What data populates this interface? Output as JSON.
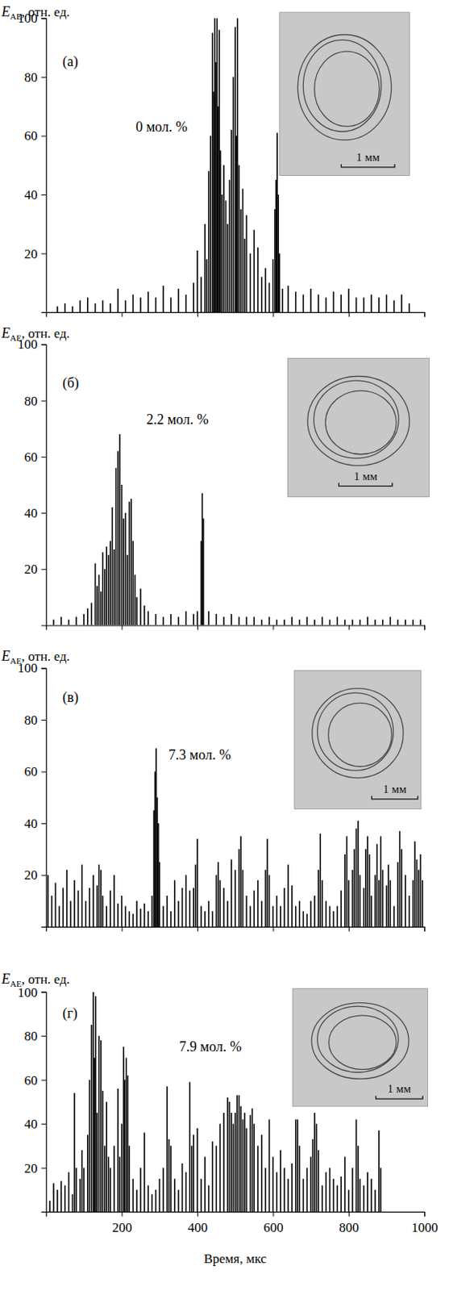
{
  "chart_data": [
    {
      "type": "bar",
      "panel_label": "(а)",
      "annotation": "0 мол. %",
      "scale_bar": "1 мм",
      "ylabel": {
        "symbol": "E",
        "subscript": "AE",
        "unit": ", отн. ед."
      },
      "color": "#000000",
      "grid": false,
      "tick_labels": "y",
      "xlim": [
        0,
        1000
      ],
      "ylim": [
        0,
        100
      ],
      "xticks": [
        200,
        400,
        600,
        800,
        1000
      ],
      "yticks": [
        20,
        40,
        60,
        80,
        100
      ],
      "x": [
        30,
        50,
        70,
        90,
        110,
        130,
        150,
        170,
        190,
        210,
        230,
        250,
        270,
        290,
        310,
        330,
        350,
        370,
        390,
        400,
        410,
        420,
        425,
        430,
        435,
        440,
        443,
        446,
        449,
        452,
        455,
        458,
        461,
        465,
        470,
        475,
        480,
        485,
        490,
        495,
        500,
        503,
        506,
        510,
        515,
        520,
        525,
        530,
        540,
        550,
        560,
        570,
        580,
        590,
        600,
        605,
        608,
        611,
        614,
        617,
        625,
        640,
        660,
        680,
        700,
        720,
        740,
        760,
        780,
        800,
        820,
        840,
        860,
        880,
        900,
        920,
        940,
        960
      ],
      "values": [
        2,
        3,
        2,
        4,
        5,
        3,
        4,
        3,
        8,
        4,
        6,
        5,
        7,
        5,
        9,
        5,
        8,
        6,
        10,
        21,
        12,
        30,
        18,
        48,
        60,
        95,
        75,
        100,
        85,
        100,
        70,
        96,
        55,
        40,
        50,
        38,
        30,
        45,
        62,
        80,
        97,
        60,
        100,
        50,
        35,
        42,
        25,
        33,
        20,
        28,
        22,
        12,
        15,
        10,
        18,
        35,
        45,
        61,
        40,
        20,
        8,
        9,
        7,
        6,
        8,
        6,
        5,
        7,
        6,
        8,
        5,
        5,
        6,
        5,
        6,
        4,
        6,
        3
      ]
    },
    {
      "type": "bar",
      "panel_label": "(б)",
      "annotation": "2.2 мол. %",
      "scale_bar": "1 мм",
      "ylabel": {
        "symbol": "E",
        "subscript": "AE",
        "unit": ", отн. ед."
      },
      "color": "#000000",
      "grid": false,
      "tick_labels": "y",
      "xlim": [
        0,
        1000
      ],
      "ylim": [
        0,
        100
      ],
      "xticks": [
        200,
        400,
        600,
        800,
        1000
      ],
      "yticks": [
        20,
        40,
        60,
        80,
        100
      ],
      "x": [
        20,
        40,
        60,
        80,
        100,
        110,
        120,
        130,
        135,
        140,
        145,
        150,
        155,
        160,
        165,
        170,
        175,
        180,
        185,
        190,
        195,
        200,
        205,
        210,
        215,
        220,
        225,
        230,
        235,
        240,
        250,
        260,
        270,
        290,
        310,
        330,
        350,
        370,
        390,
        400,
        410,
        413,
        416,
        430,
        450,
        470,
        490,
        510,
        530,
        550,
        570,
        590,
        610,
        630,
        650,
        670,
        690,
        710,
        730,
        750,
        770,
        790,
        810,
        830,
        850,
        870,
        890,
        910,
        930,
        950,
        970,
        990
      ],
      "values": [
        2,
        3,
        2,
        3,
        4,
        6,
        8,
        22,
        14,
        18,
        12,
        26,
        20,
        28,
        25,
        30,
        42,
        27,
        56,
        62,
        68,
        50,
        38,
        40,
        25,
        44,
        45,
        30,
        18,
        10,
        13,
        7,
        5,
        4,
        3,
        4,
        3,
        5,
        4,
        5,
        30,
        47,
        38,
        5,
        4,
        3,
        4,
        3,
        3,
        3,
        2,
        3,
        2,
        2,
        3,
        2,
        3,
        2,
        3,
        2,
        3,
        2,
        2,
        2,
        3,
        2,
        2,
        3,
        2,
        2,
        2,
        2
      ]
    },
    {
      "type": "bar",
      "panel_label": "(в)",
      "annotation": "7.3 мол. %",
      "scale_bar": "1 мм",
      "ylabel": {
        "symbol": "E",
        "subscript": "AE",
        "unit": ", отн. ед."
      },
      "color": "#000000",
      "grid": false,
      "tick_labels": "y",
      "xlim": [
        0,
        1000
      ],
      "ylim": [
        0,
        100
      ],
      "xticks": [
        200,
        400,
        600,
        800,
        1000
      ],
      "yticks": [
        20,
        40,
        60,
        80,
        100
      ],
      "x": [
        5,
        15,
        25,
        35,
        45,
        55,
        65,
        75,
        85,
        95,
        105,
        115,
        125,
        135,
        140,
        145,
        150,
        160,
        170,
        180,
        190,
        200,
        210,
        220,
        230,
        240,
        250,
        260,
        270,
        280,
        285,
        288,
        291,
        294,
        297,
        300,
        310,
        320,
        330,
        340,
        350,
        360,
        370,
        380,
        390,
        395,
        400,
        410,
        420,
        430,
        440,
        450,
        455,
        460,
        470,
        480,
        490,
        500,
        510,
        515,
        520,
        530,
        540,
        550,
        560,
        570,
        580,
        585,
        590,
        600,
        610,
        620,
        630,
        640,
        650,
        660,
        670,
        680,
        690,
        700,
        710,
        720,
        725,
        730,
        740,
        750,
        760,
        770,
        780,
        790,
        795,
        800,
        810,
        815,
        820,
        825,
        830,
        840,
        845,
        850,
        855,
        860,
        870,
        875,
        880,
        885,
        890,
        900,
        905,
        910,
        920,
        930,
        935,
        940,
        950,
        960,
        970,
        975,
        980,
        985,
        990,
        995
      ],
      "values": [
        20,
        12,
        17,
        8,
        15,
        22,
        10,
        18,
        14,
        24,
        10,
        15,
        20,
        16,
        24,
        22,
        12,
        8,
        14,
        20,
        9,
        12,
        8,
        6,
        5,
        10,
        7,
        9,
        6,
        12,
        45,
        60,
        69,
        50,
        40,
        25,
        8,
        12,
        6,
        18,
        10,
        15,
        20,
        14,
        15,
        24,
        34,
        8,
        6,
        10,
        6,
        20,
        25,
        18,
        15,
        10,
        26,
        22,
        30,
        35,
        22,
        12,
        8,
        14,
        18,
        10,
        22,
        34,
        20,
        8,
        12,
        8,
        15,
        24,
        16,
        8,
        10,
        6,
        5,
        10,
        12,
        22,
        36,
        18,
        10,
        8,
        6,
        8,
        14,
        28,
        35,
        18,
        22,
        30,
        38,
        41,
        20,
        15,
        30,
        35,
        28,
        12,
        20,
        32,
        18,
        35,
        22,
        16,
        24,
        18,
        8,
        25,
        37,
        30,
        20,
        12,
        18,
        33,
        26,
        22,
        28,
        18
      ]
    },
    {
      "type": "bar",
      "panel_label": "(г)",
      "annotation": "7.9 мол. %",
      "scale_bar": "1 мм",
      "ylabel": {
        "symbol": "E",
        "subscript": "AE",
        "unit": ", отн. ед."
      },
      "xlabel": "Время, мкс",
      "color": "#000000",
      "grid": false,
      "xlim": [
        0,
        1000
      ],
      "ylim": [
        0,
        100
      ],
      "xticks": [
        200,
        400,
        600,
        800,
        1000
      ],
      "yticks": [
        20,
        40,
        60,
        80,
        100
      ],
      "x": [
        10,
        20,
        30,
        40,
        50,
        60,
        70,
        75,
        80,
        90,
        95,
        100,
        110,
        115,
        120,
        125,
        128,
        131,
        135,
        140,
        145,
        150,
        155,
        160,
        165,
        170,
        180,
        190,
        195,
        200,
        205,
        208,
        212,
        216,
        220,
        230,
        240,
        250,
        260,
        270,
        280,
        290,
        300,
        310,
        320,
        325,
        330,
        340,
        350,
        360,
        370,
        380,
        385,
        390,
        400,
        410,
        420,
        430,
        440,
        450,
        460,
        470,
        480,
        485,
        490,
        495,
        500,
        505,
        510,
        515,
        520,
        525,
        530,
        540,
        545,
        550,
        560,
        570,
        580,
        590,
        600,
        610,
        620,
        630,
        640,
        650,
        660,
        665,
        670,
        680,
        690,
        700,
        705,
        710,
        715,
        720,
        730,
        740,
        750,
        760,
        770,
        780,
        790,
        800,
        810,
        820,
        825,
        830,
        840,
        850,
        860,
        870,
        880,
        885
      ],
      "values": [
        5,
        13,
        10,
        14,
        12,
        18,
        8,
        54,
        20,
        15,
        28,
        20,
        35,
        60,
        85,
        100,
        70,
        98,
        45,
        80,
        78,
        55,
        30,
        50,
        25,
        20,
        30,
        56,
        25,
        40,
        75,
        60,
        70,
        62,
        30,
        15,
        10,
        20,
        36,
        12,
        8,
        10,
        15,
        20,
        57,
        33,
        30,
        15,
        10,
        22,
        18,
        59,
        30,
        35,
        38,
        15,
        25,
        12,
        32,
        30,
        40,
        45,
        52,
        50,
        45,
        40,
        45,
        53,
        53,
        48,
        42,
        45,
        38,
        44,
        47,
        40,
        30,
        35,
        20,
        42,
        25,
        18,
        28,
        20,
        15,
        22,
        42,
        42,
        30,
        15,
        20,
        25,
        33,
        45,
        40,
        28,
        12,
        18,
        20,
        15,
        12,
        16,
        25,
        10,
        20,
        42,
        30,
        15,
        12,
        18,
        15,
        10,
        37,
        20
      ]
    }
  ]
}
